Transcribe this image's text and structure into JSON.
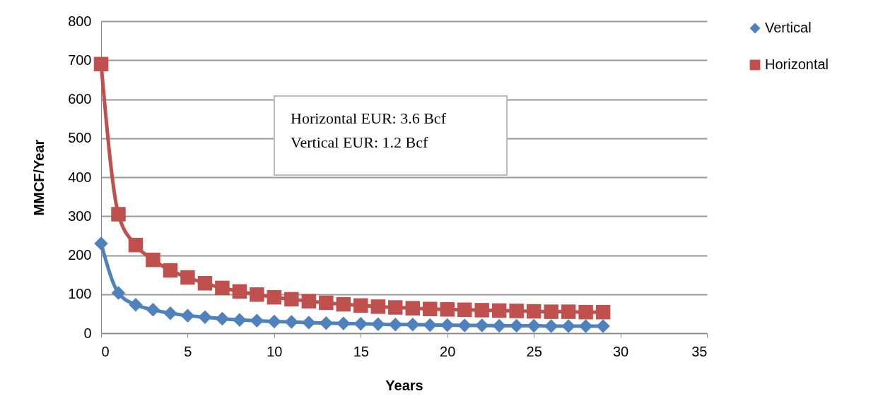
{
  "chart_data": {
    "type": "line",
    "xlabel": "Years",
    "ylabel": "MMCF/Year",
    "x": [
      0,
      1,
      2,
      3,
      4,
      5,
      6,
      7,
      8,
      9,
      10,
      11,
      12,
      13,
      14,
      15,
      16,
      17,
      18,
      19,
      20,
      21,
      22,
      23,
      24,
      25,
      26,
      27,
      28,
      29
    ],
    "series": [
      {
        "name": "Vertical",
        "color": "#4f81bd",
        "marker": "diamond",
        "values": [
          230,
          103,
          73,
          60,
          51,
          45,
          41,
          37,
          34,
          32,
          30,
          29,
          27,
          26,
          25,
          24,
          23,
          22,
          22,
          21,
          21,
          20,
          20,
          19,
          19,
          19,
          18,
          18,
          18,
          18
        ]
      },
      {
        "name": "Horizontal",
        "color": "#c0504d",
        "marker": "square",
        "values": [
          690,
          305,
          226,
          188,
          161,
          143,
          128,
          116,
          107,
          99,
          92,
          87,
          82,
          78,
          74,
          71,
          68,
          66,
          64,
          62,
          61,
          60,
          59,
          58,
          57,
          56,
          55,
          55,
          54,
          54
        ]
      }
    ],
    "xlim": [
      0,
      35
    ],
    "xticks": [
      0,
      5,
      10,
      15,
      20,
      25,
      30,
      35
    ],
    "ylim": [
      0,
      800
    ],
    "yticks": [
      0,
      100,
      200,
      300,
      400,
      500,
      600,
      700,
      800
    ],
    "grid": "y",
    "legend": "right",
    "annotations": [
      "Horizontal EUR: 3.6 Bcf",
      "Vertical EUR: 1.2 Bcf"
    ]
  }
}
